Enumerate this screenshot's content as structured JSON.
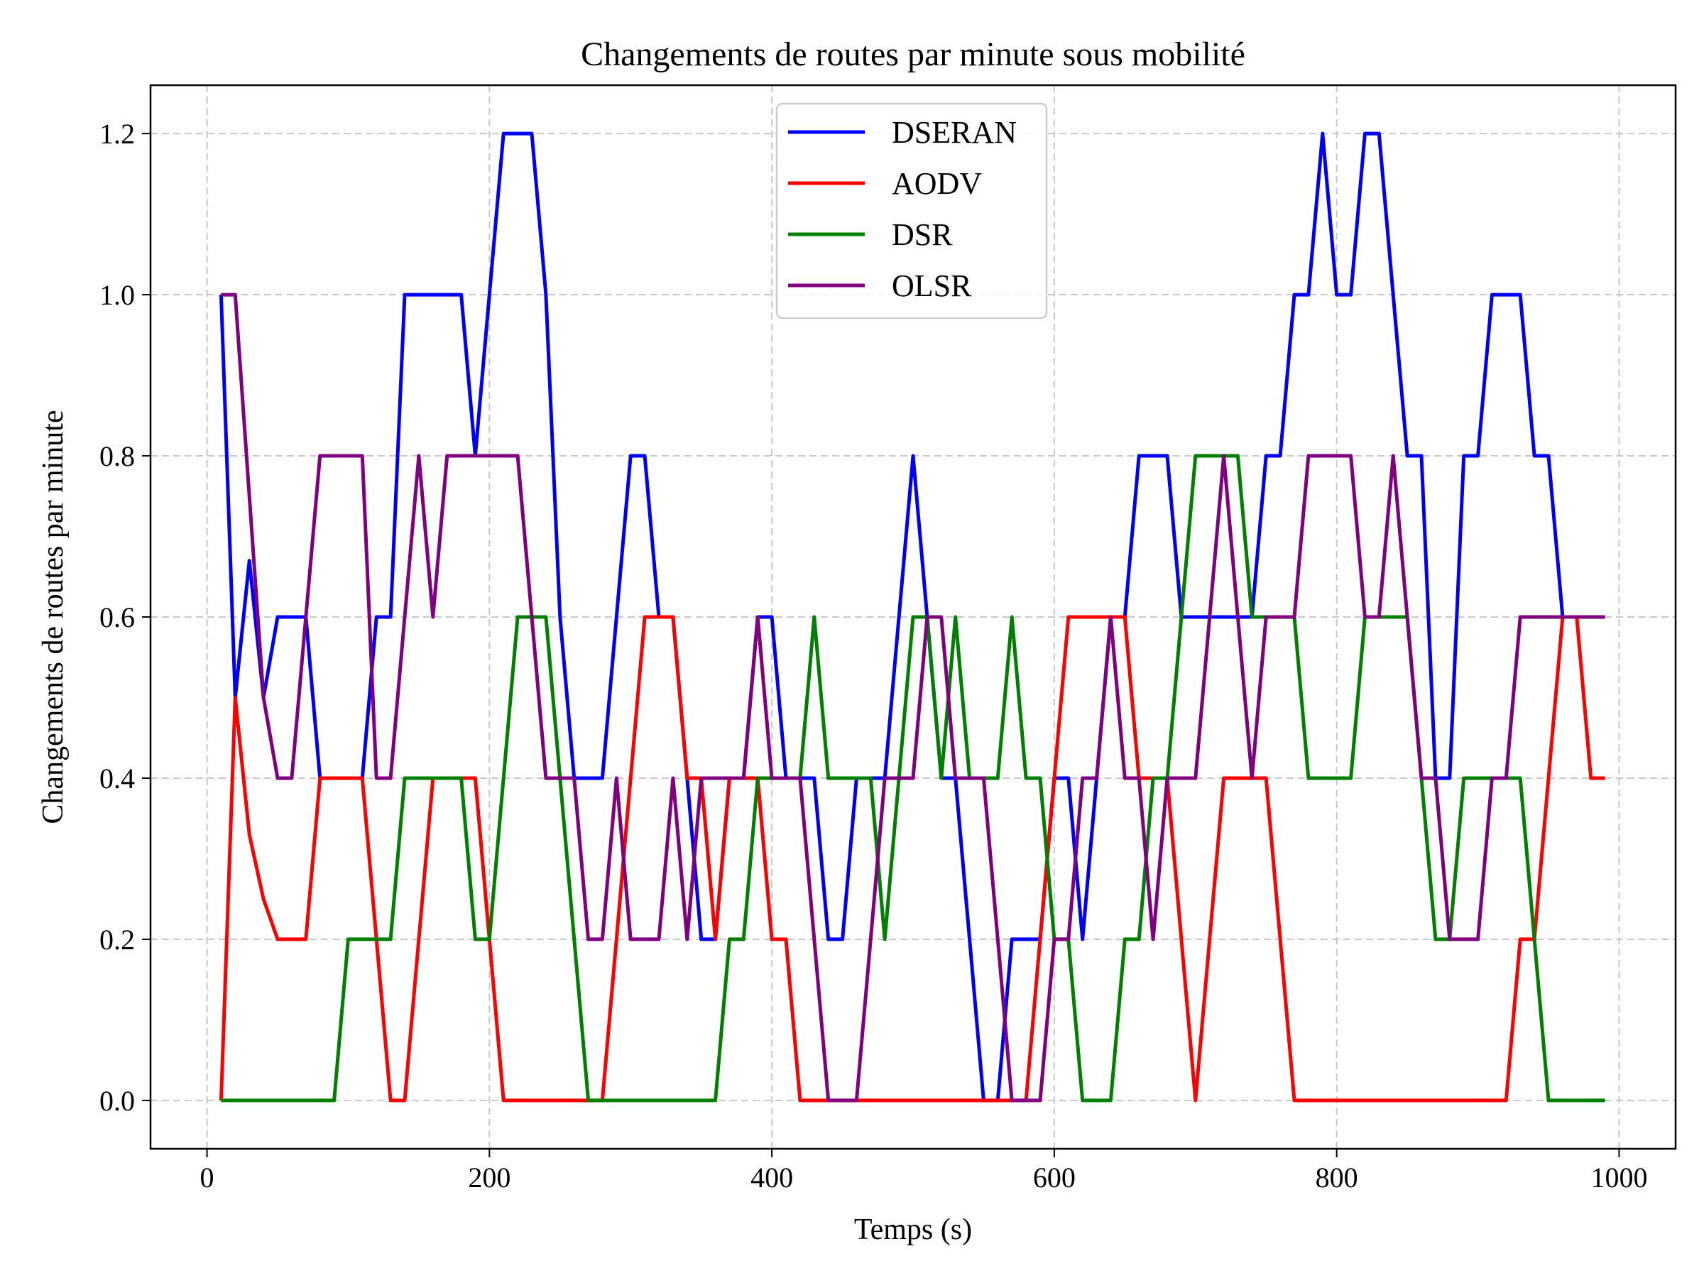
{
  "chart_data": {
    "type": "line",
    "title": "Changements de routes par minute sous mobilité",
    "xlabel": "Temps (s)",
    "ylabel": "Changements de routes par minute",
    "xlim": [
      -40,
      1040
    ],
    "ylim": [
      -0.06,
      1.26
    ],
    "xticks": [
      0,
      200,
      400,
      600,
      800,
      1000
    ],
    "xtick_labels": [
      "0",
      "200",
      "400",
      "600",
      "800",
      "1000"
    ],
    "yticks": [
      0.0,
      0.2,
      0.4,
      0.6,
      0.8,
      1.0,
      1.2
    ],
    "ytick_labels": [
      "0.0",
      "0.2",
      "0.4",
      "0.6",
      "0.8",
      "1.0",
      "1.2"
    ],
    "grid": true,
    "legend_position": "top-center",
    "x": [
      10,
      20,
      30,
      40,
      50,
      60,
      70,
      80,
      90,
      100,
      110,
      120,
      130,
      140,
      150,
      160,
      170,
      180,
      190,
      200,
      210,
      220,
      230,
      240,
      250,
      260,
      270,
      280,
      290,
      300,
      310,
      320,
      330,
      340,
      350,
      360,
      370,
      380,
      390,
      400,
      410,
      420,
      430,
      440,
      450,
      460,
      470,
      480,
      490,
      500,
      510,
      520,
      530,
      540,
      550,
      560,
      570,
      580,
      590,
      600,
      610,
      620,
      630,
      640,
      650,
      660,
      670,
      680,
      690,
      700,
      710,
      720,
      730,
      740,
      750,
      760,
      770,
      780,
      790,
      800,
      810,
      820,
      830,
      840,
      850,
      860,
      870,
      880,
      890,
      900,
      910,
      920,
      930,
      940,
      950,
      960,
      970,
      980,
      990
    ],
    "series": [
      {
        "name": "DSERAN",
        "color": "#0000ff",
        "values": [
          1.0,
          0.5,
          0.67,
          0.5,
          0.6,
          0.6,
          0.6,
          0.4,
          0.4,
          0.4,
          0.4,
          0.6,
          0.6,
          1.0,
          1.0,
          1.0,
          1.0,
          1.0,
          0.8,
          1.0,
          1.2,
          1.2,
          1.2,
          1.0,
          0.6,
          0.4,
          0.4,
          0.4,
          0.6,
          0.8,
          0.8,
          0.6,
          0.6,
          0.4,
          0.2,
          0.2,
          0.4,
          0.4,
          0.6,
          0.6,
          0.4,
          0.4,
          0.4,
          0.2,
          0.2,
          0.4,
          0.4,
          0.4,
          0.6,
          0.8,
          0.6,
          0.4,
          0.4,
          0.2,
          0.0,
          0.0,
          0.2,
          0.2,
          0.2,
          0.4,
          0.4,
          0.2,
          0.4,
          0.6,
          0.6,
          0.8,
          0.8,
          0.8,
          0.6,
          0.6,
          0.6,
          0.6,
          0.6,
          0.6,
          0.8,
          0.8,
          1.0,
          1.0,
          1.2,
          1.0,
          1.0,
          1.2,
          1.2,
          1.0,
          0.8,
          0.8,
          0.4,
          0.4,
          0.8,
          0.8,
          1.0,
          1.0,
          1.0,
          0.8,
          0.8,
          0.6,
          0.6,
          0.6,
          0.6
        ]
      },
      {
        "name": "AODV",
        "color": "#ff0000",
        "values": [
          0.0,
          0.5,
          0.33,
          0.25,
          0.2,
          0.2,
          0.2,
          0.4,
          0.4,
          0.4,
          0.4,
          0.2,
          0.0,
          0.0,
          0.2,
          0.4,
          0.4,
          0.4,
          0.4,
          0.2,
          0.0,
          0.0,
          0.0,
          0.0,
          0.0,
          0.0,
          0.0,
          0.0,
          0.2,
          0.4,
          0.6,
          0.6,
          0.6,
          0.4,
          0.4,
          0.2,
          0.4,
          0.4,
          0.4,
          0.2,
          0.2,
          0.0,
          0.0,
          0.0,
          0.0,
          0.0,
          0.0,
          0.0,
          0.0,
          0.0,
          0.0,
          0.0,
          0.0,
          0.0,
          0.0,
          0.0,
          0.0,
          0.0,
          0.2,
          0.4,
          0.6,
          0.6,
          0.6,
          0.6,
          0.6,
          0.4,
          0.4,
          0.4,
          0.2,
          0.0,
          0.2,
          0.4,
          0.4,
          0.4,
          0.4,
          0.2,
          0.0,
          0.0,
          0.0,
          0.0,
          0.0,
          0.0,
          0.0,
          0.0,
          0.0,
          0.0,
          0.0,
          0.0,
          0.0,
          0.0,
          0.0,
          0.0,
          0.2,
          0.2,
          0.4,
          0.6,
          0.6,
          0.4,
          0.4
        ]
      },
      {
        "name": "DSR",
        "color": "#008000",
        "values": [
          0.0,
          0.0,
          0.0,
          0.0,
          0.0,
          0.0,
          0.0,
          0.0,
          0.0,
          0.2,
          0.2,
          0.2,
          0.2,
          0.4,
          0.4,
          0.4,
          0.4,
          0.4,
          0.2,
          0.2,
          0.4,
          0.6,
          0.6,
          0.6,
          0.4,
          0.2,
          0.0,
          0.0,
          0.0,
          0.0,
          0.0,
          0.0,
          0.0,
          0.0,
          0.0,
          0.0,
          0.2,
          0.2,
          0.4,
          0.4,
          0.4,
          0.4,
          0.6,
          0.4,
          0.4,
          0.4,
          0.4,
          0.2,
          0.4,
          0.6,
          0.6,
          0.4,
          0.6,
          0.4,
          0.4,
          0.4,
          0.6,
          0.4,
          0.4,
          0.2,
          0.2,
          0.0,
          0.0,
          0.0,
          0.2,
          0.2,
          0.4,
          0.4,
          0.6,
          0.8,
          0.8,
          0.8,
          0.8,
          0.6,
          0.6,
          0.6,
          0.6,
          0.4,
          0.4,
          0.4,
          0.4,
          0.6,
          0.6,
          0.6,
          0.6,
          0.4,
          0.2,
          0.2,
          0.4,
          0.4,
          0.4,
          0.4,
          0.4,
          0.2,
          0.0,
          0.0,
          0.0,
          0.0,
          0.0
        ]
      },
      {
        "name": "OLSR",
        "color": "#800080",
        "values": [
          1.0,
          1.0,
          0.75,
          0.5,
          0.4,
          0.4,
          0.6,
          0.8,
          0.8,
          0.8,
          0.8,
          0.4,
          0.4,
          0.6,
          0.8,
          0.6,
          0.8,
          0.8,
          0.8,
          0.8,
          0.8,
          0.8,
          0.6,
          0.4,
          0.4,
          0.4,
          0.2,
          0.2,
          0.4,
          0.2,
          0.2,
          0.2,
          0.4,
          0.2,
          0.4,
          0.4,
          0.4,
          0.4,
          0.6,
          0.4,
          0.4,
          0.4,
          0.2,
          0.0,
          0.0,
          0.0,
          0.2,
          0.4,
          0.4,
          0.4,
          0.6,
          0.6,
          0.4,
          0.4,
          0.4,
          0.2,
          0.0,
          0.0,
          0.0,
          0.2,
          0.2,
          0.4,
          0.4,
          0.6,
          0.4,
          0.4,
          0.2,
          0.4,
          0.4,
          0.4,
          0.6,
          0.8,
          0.6,
          0.4,
          0.6,
          0.6,
          0.6,
          0.8,
          0.8,
          0.8,
          0.8,
          0.6,
          0.6,
          0.8,
          0.6,
          0.4,
          0.4,
          0.2,
          0.2,
          0.2,
          0.4,
          0.4,
          0.6,
          0.6,
          0.6,
          0.6,
          0.6,
          0.6,
          0.6
        ]
      }
    ]
  }
}
